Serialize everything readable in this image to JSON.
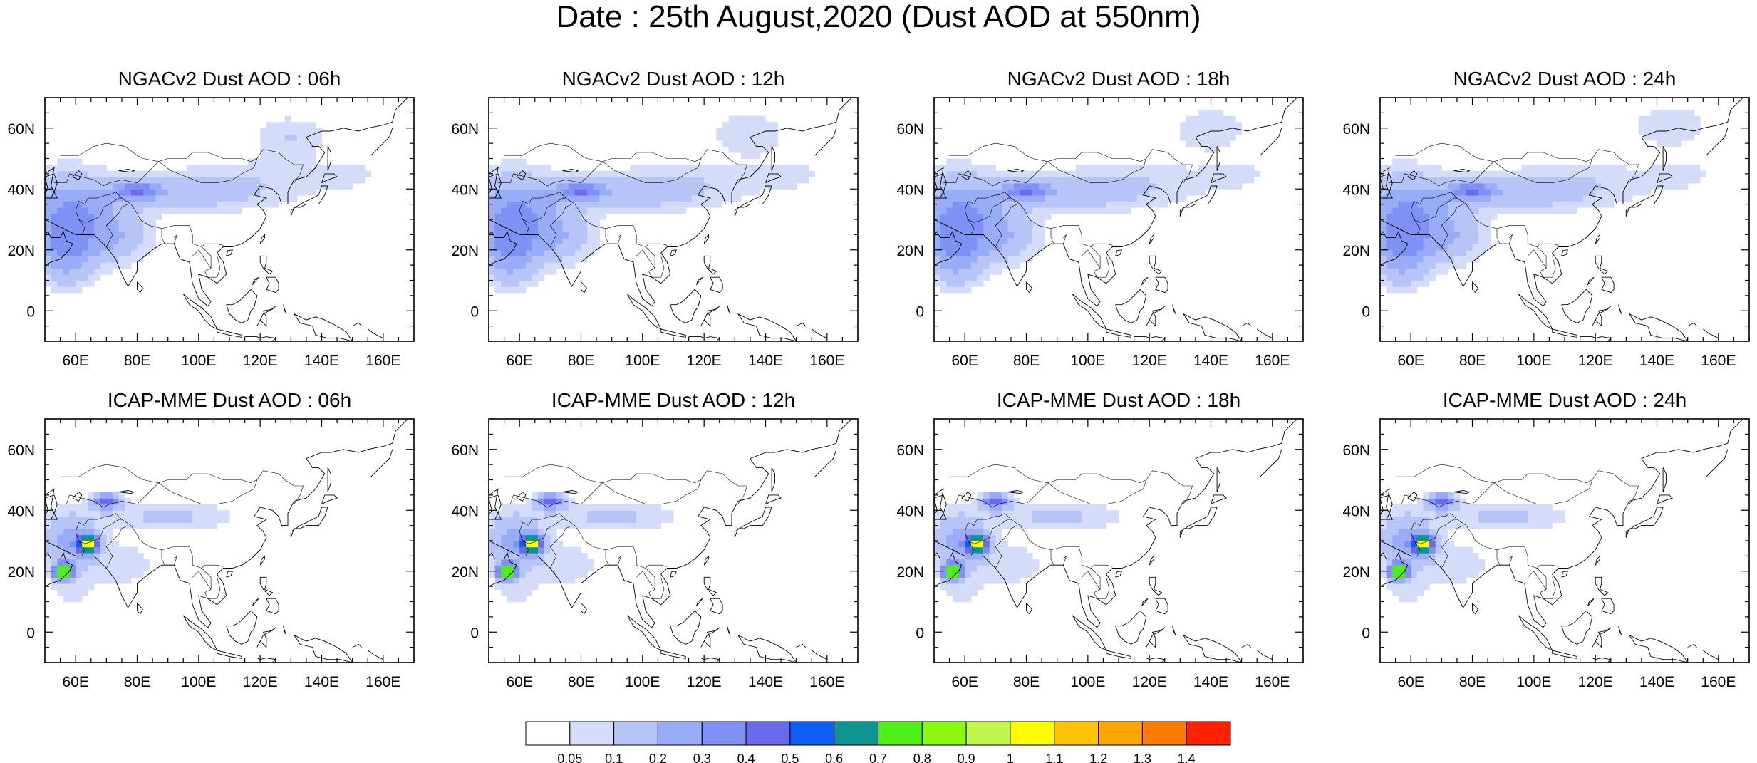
{
  "title": "Date : 25th August,2020 (Dust AOD at 550nm)",
  "panels": [
    {
      "title": "NGACv2 Dust AOD : 06h",
      "model": "NGACv2",
      "hour": "06h"
    },
    {
      "title": "NGACv2 Dust AOD : 12h",
      "model": "NGACv2",
      "hour": "12h"
    },
    {
      "title": "NGACv2 Dust AOD : 18h",
      "model": "NGACv2",
      "hour": "18h"
    },
    {
      "title": "NGACv2 Dust AOD : 24h",
      "model": "NGACv2",
      "hour": "24h"
    },
    {
      "title": "ICAP-MME Dust AOD : 06h",
      "model": "ICAP-MME",
      "hour": "06h"
    },
    {
      "title": "ICAP-MME Dust AOD : 12h",
      "model": "ICAP-MME",
      "hour": "12h"
    },
    {
      "title": "ICAP-MME Dust AOD : 18h",
      "model": "ICAP-MME",
      "hour": "18h"
    },
    {
      "title": "ICAP-MME Dust AOD : 24h",
      "model": "ICAP-MME",
      "hour": "24h"
    }
  ],
  "axes": {
    "lon_range": [
      50,
      170
    ],
    "lat_range": [
      -10,
      70
    ],
    "lon_ticks": [
      "60E",
      "80E",
      "100E",
      "120E",
      "140E",
      "160E"
    ],
    "lat_ticks": [
      "0",
      "20N",
      "40N",
      "60N"
    ]
  },
  "colorbar": {
    "labels": [
      "0.05",
      "0.1",
      "0.2",
      "0.3",
      "0.4",
      "0.5",
      "0.6",
      "0.7",
      "0.8",
      "0.9",
      "1",
      "1.1",
      "1.2",
      "1.3",
      "1.4"
    ],
    "colors": [
      "#ffffff",
      "#d4dcfa",
      "#b6c4f8",
      "#98acf7",
      "#7f91f5",
      "#6b69ee",
      "#0d5ef2",
      "#0f9494",
      "#4fee1a",
      "#8cf70f",
      "#c4f74d",
      "#fffc00",
      "#ffc300",
      "#ffa500",
      "#ff7a00",
      "#ff2200"
    ]
  }
}
